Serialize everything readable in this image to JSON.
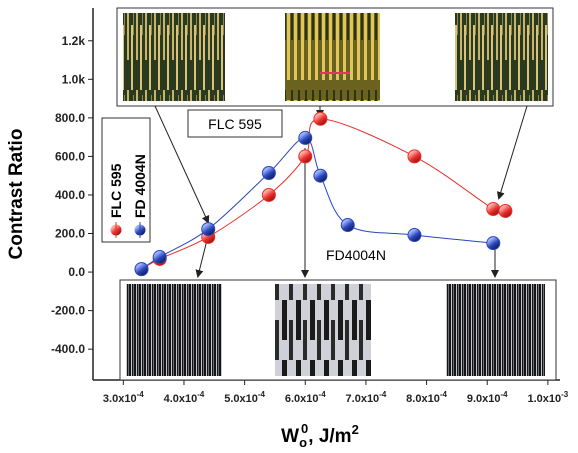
{
  "chart_data": {
    "type": "scatter",
    "y_label": "Contrast Ratio",
    "x_label": {
      "main": "W",
      "sub": "o",
      "sup": "0",
      "unit": ", J/m",
      "unit_sup": "2"
    },
    "xlim": [
      0.00025,
      0.00102
    ],
    "ylim": [
      -560,
      1370
    ],
    "xticks": [
      {
        "value": 0.0003,
        "label": "3.0x10",
        "exponent": "-4"
      },
      {
        "value": 0.0004,
        "label": "4.0x10",
        "exponent": "-4"
      },
      {
        "value": 0.0005,
        "label": "5.0x10",
        "exponent": "-4"
      },
      {
        "value": 0.0006,
        "label": "6.0x10",
        "exponent": "-4"
      },
      {
        "value": 0.0007,
        "label": "7.0x10",
        "exponent": "-4"
      },
      {
        "value": 0.0008,
        "label": "8.0x10",
        "exponent": "-4"
      },
      {
        "value": 0.0009,
        "label": "9.0x10",
        "exponent": "-4"
      },
      {
        "value": 0.001,
        "label": "1.0x10",
        "exponent": "-3"
      }
    ],
    "yticks": [
      {
        "value": -400,
        "label": "-400.0"
      },
      {
        "value": -200,
        "label": "-200.0"
      },
      {
        "value": 0,
        "label": "0.0"
      },
      {
        "value": 200,
        "label": "200.0"
      },
      {
        "value": 400,
        "label": "400.0"
      },
      {
        "value": 600,
        "label": "600.0"
      },
      {
        "value": 800,
        "label": "800.0"
      },
      {
        "value": 1000,
        "label": "1.0k"
      },
      {
        "value": 1200,
        "label": "1.2k"
      }
    ],
    "series": [
      {
        "name": "FLC 595",
        "color": "#e8302c",
        "x": [
          0.00033,
          0.00036,
          0.00044,
          0.00054,
          0.0006,
          0.000625,
          0.00078,
          0.00091,
          0.00093
        ],
        "values": [
          15,
          68,
          182,
          400,
          600,
          795,
          600,
          327,
          317
        ]
      },
      {
        "name": "FD 4004N",
        "color": "#2a46b8",
        "x": [
          0.00033,
          0.00036,
          0.00044,
          0.00054,
          0.0006,
          0.000625,
          0.00067,
          0.00078,
          0.00091
        ],
        "values": [
          15,
          78,
          223,
          514,
          696,
          500,
          244,
          192,
          150
        ]
      }
    ],
    "annotations": [
      "FLC 595",
      "FD4004N"
    ]
  }
}
